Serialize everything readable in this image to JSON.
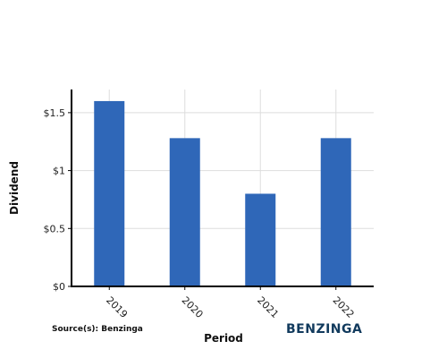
{
  "chart_data": {
    "type": "bar",
    "categories": [
      "2019",
      "2020",
      "2021",
      "2022"
    ],
    "values": [
      1.6,
      1.28,
      0.8,
      1.28
    ],
    "xlabel": "Period",
    "ylabel": "Dividend",
    "yticks": [
      0,
      0.5,
      1,
      1.5
    ],
    "ytick_labels": [
      "$0",
      "$0.5",
      "$1",
      "$1.5"
    ],
    "ylim": [
      0,
      1.7
    ],
    "grid": true,
    "bar_color": "#2f67b8"
  },
  "source_text": "Source(s): Benzinga",
  "logo_text": "BENZINGA",
  "colors": {
    "logo": "#113a5d",
    "axis": "#000000",
    "grid": "#dddddd"
  }
}
